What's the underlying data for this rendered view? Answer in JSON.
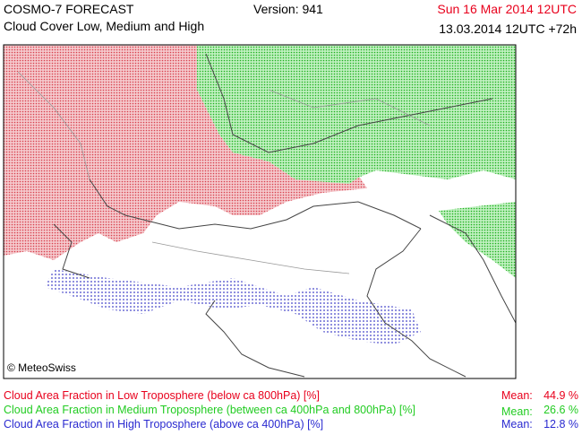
{
  "header": {
    "product": "COSMO-7 FORECAST",
    "subtitle": "Cloud Cover Low, Medium and High",
    "version": "Version: 941",
    "valid_time": "Sun 16 Mar 2014 12UTC",
    "run_time": "13.03.2014 12UTC +72h"
  },
  "map": {
    "credit": "© MeteoSwiss"
  },
  "legend": [
    {
      "label": "Cloud Area Fraction in Low Troposphere (below ca 800hPa) [%]",
      "mean_label": "Mean:",
      "mean": "44.9 %",
      "color": "#e8001c"
    },
    {
      "label": "Cloud Area Fraction in Medium Troposphere (between ca 400hPa and 800hPa) [%]",
      "mean_label": "Mean:",
      "mean": "26.6 %",
      "color": "#22cc22"
    },
    {
      "label": "Cloud Area Fraction in High Troposphere (above ca 400hPa) [%]",
      "mean_label": "Mean:",
      "mean": "12.8 %",
      "color": "#2a2ad0"
    }
  ]
}
